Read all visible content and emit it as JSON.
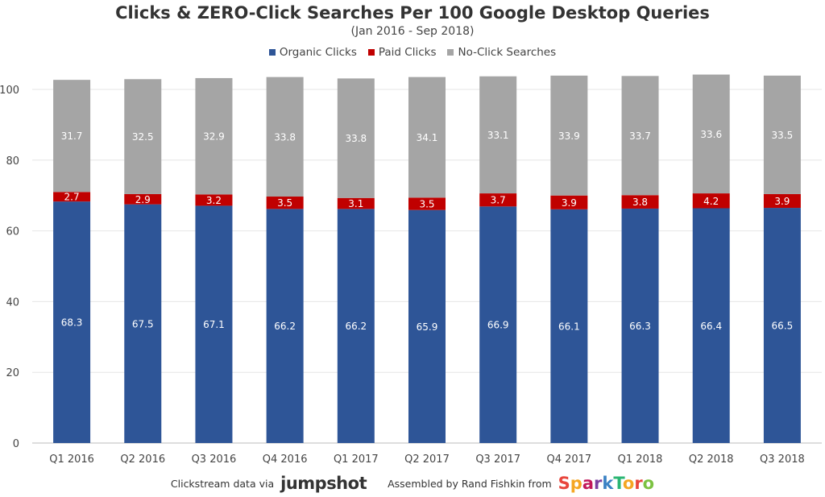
{
  "chart_data": {
    "type": "bar",
    "stacked": true,
    "title": "Clicks & ZERO-Click Searches Per 100 Google Desktop Queries",
    "subtitle": "(Jan 2016 - Sep 2018)",
    "xlabel": "",
    "ylabel": "",
    "ylim": [
      0,
      100
    ],
    "yticks": [
      "0",
      "20",
      "40",
      "60",
      "80",
      "100"
    ],
    "grid": true,
    "legend_position": "top-center",
    "categories": [
      "Q1 2016",
      "Q2 2016",
      "Q3 2016",
      "Q4 2016",
      "Q1 2017",
      "Q2 2017",
      "Q3 2017",
      "Q4 2017",
      "Q1 2018",
      "Q2 2018",
      "Q3 2018"
    ],
    "series": [
      {
        "name": "Organic Clicks",
        "color": "#2e5597",
        "values": [
          68.3,
          67.5,
          67.1,
          66.2,
          66.2,
          65.9,
          66.9,
          66.1,
          66.3,
          66.4,
          66.5
        ]
      },
      {
        "name": "Paid Clicks",
        "color": "#c00000",
        "values": [
          2.7,
          2.9,
          3.2,
          3.5,
          3.1,
          3.5,
          3.7,
          3.9,
          3.8,
          4.2,
          3.9
        ]
      },
      {
        "name": "No-Click Searches",
        "color": "#a5a5a5",
        "values": [
          31.7,
          32.5,
          32.9,
          33.8,
          33.8,
          34.1,
          33.1,
          33.9,
          33.7,
          33.6,
          33.5
        ]
      }
    ]
  },
  "footer": {
    "source_text": "Clickstream data via",
    "source_brand": "jumpshot",
    "credit_text": "Assembled by Rand Fishkin from",
    "credit_brand": "SparkToro"
  }
}
